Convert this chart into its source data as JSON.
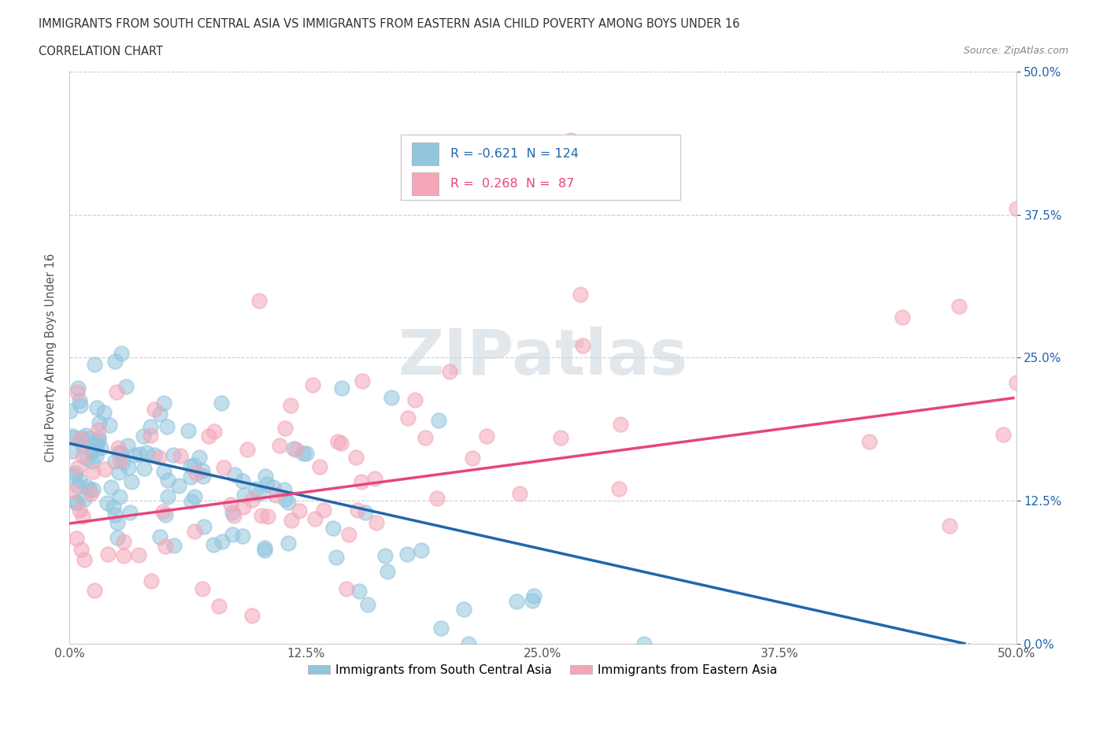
{
  "title_line1": "IMMIGRANTS FROM SOUTH CENTRAL ASIA VS IMMIGRANTS FROM EASTERN ASIA CHILD POVERTY AMONG BOYS UNDER 16",
  "title_line2": "CORRELATION CHART",
  "source": "Source: ZipAtlas.com",
  "ylabel": "Child Poverty Among Boys Under 16",
  "xlim": [
    0.0,
    0.5
  ],
  "ylim": [
    0.0,
    0.5
  ],
  "xtick_vals": [
    0.0,
    0.125,
    0.25,
    0.375,
    0.5
  ],
  "ytick_vals": [
    0.0,
    0.125,
    0.25,
    0.375,
    0.5
  ],
  "color_blue": "#92c5de",
  "color_pink": "#f4a6b8",
  "line_blue": "#2166ac",
  "line_pink": "#e8457a",
  "R_blue": -0.621,
  "N_blue": 124,
  "R_pink": 0.268,
  "N_pink": 87,
  "legend_label_blue": "Immigrants from South Central Asia",
  "legend_label_pink": "Immigrants from Eastern Asia",
  "watermark": "ZIPatlas",
  "blue_line_x0": 0.0,
  "blue_line_y0": 0.175,
  "blue_line_x1": 0.5,
  "blue_line_y1": -0.01,
  "pink_line_x0": 0.0,
  "pink_line_y0": 0.105,
  "pink_line_x1": 0.5,
  "pink_line_y1": 0.215
}
